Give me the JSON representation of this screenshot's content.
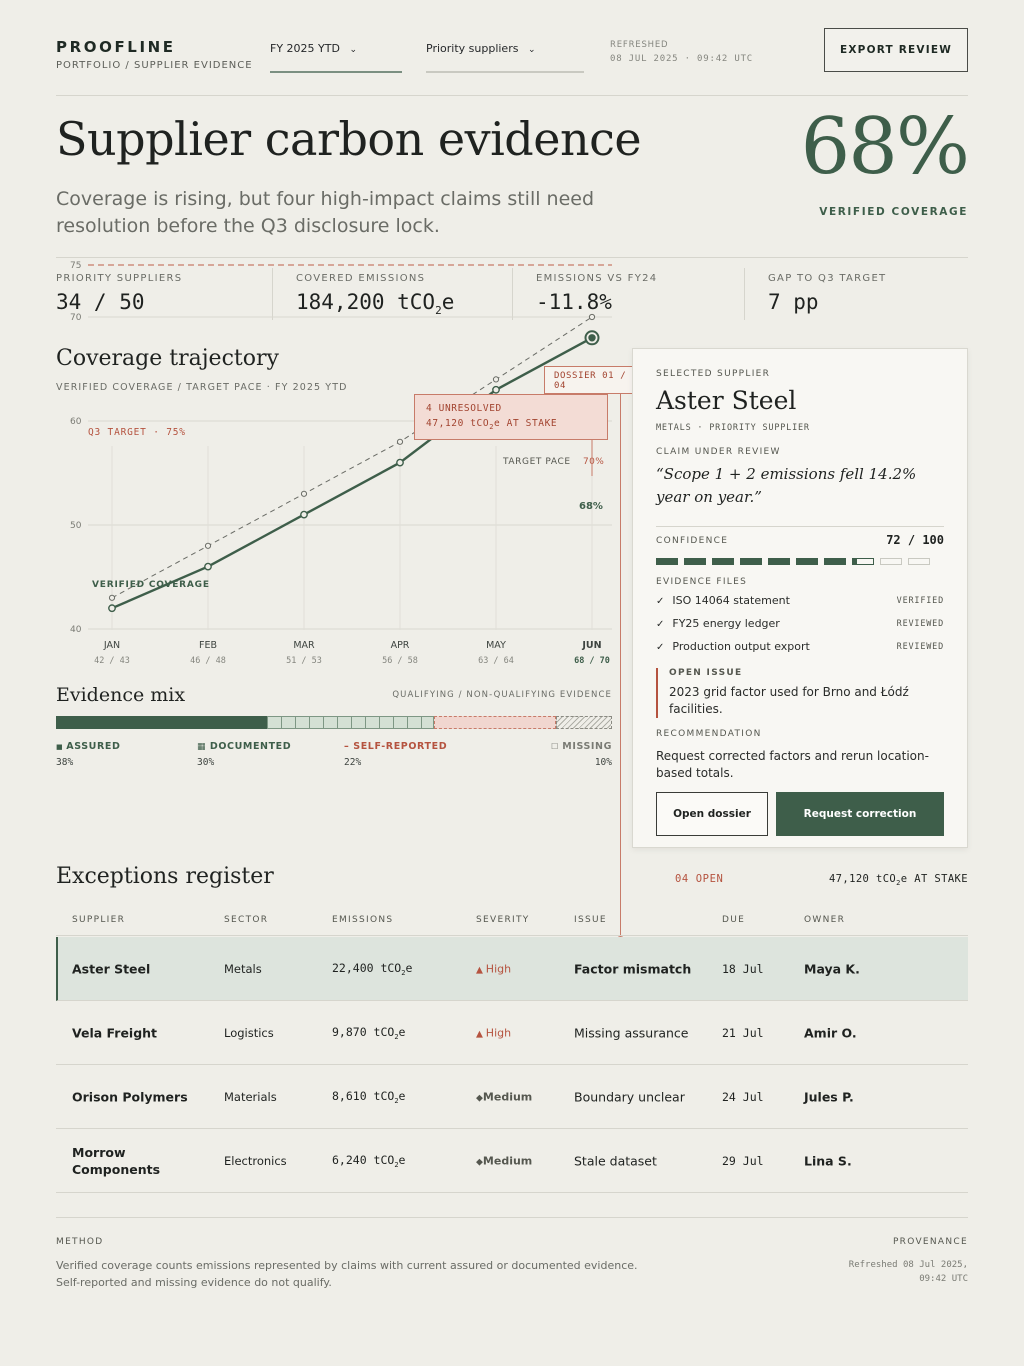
{
  "header": {
    "brand": "PROOFLINE",
    "breadcrumb": "PORTFOLIO / SUPPLIER EVIDENCE",
    "period_select": "FY 2025 YTD",
    "supplier_select": "Priority suppliers",
    "refreshed_label": "REFRESHED",
    "refreshed_value": "08 JUL 2025 · 09:42 UTC",
    "export_label": "EXPORT REVIEW"
  },
  "hero": {
    "title": "Supplier carbon evidence",
    "lede": "Coverage is rising, but four high-impact claims still need resolution before the Q3 disclosure lock.",
    "coverage_value": "68%",
    "coverage_label": "VERIFIED COVERAGE"
  },
  "kpis": [
    {
      "label": "PRIORITY SUPPLIERS",
      "value": "34 / 50"
    },
    {
      "label": "COVERED EMISSIONS",
      "value": "184,200 tCO",
      "sub": "2",
      "tail": "e"
    },
    {
      "label": "EMISSIONS VS FY24",
      "value": "-11.8%"
    },
    {
      "label": "GAP TO Q3 TARGET",
      "value": "7 pp"
    }
  ],
  "trajectory": {
    "title": "Coverage trajectory",
    "subtitle": "VERIFIED COVERAGE / TARGET PACE · FY 2025 YTD",
    "target_label": "Q3 TARGET · 75%",
    "pace_label": "TARGET PACE",
    "pace_end_label": "70%",
    "series_label": "VERIFIED COVERAGE",
    "end_label": "68%",
    "callout_line1": "4 UNRESOLVED",
    "callout_line2a": "47,120 tCO",
    "callout_line2b": "e AT STAKE",
    "dossier_tag": "DOSSIER 01 / 04"
  },
  "chart_data": {
    "type": "line",
    "categories": [
      "JAN",
      "FEB",
      "MAR",
      "APR",
      "MAY",
      "JUN"
    ],
    "pair_labels": [
      "42 / 43",
      "46 / 48",
      "51 / 53",
      "56 / 58",
      "63 / 64",
      "68 / 70"
    ],
    "series": [
      {
        "name": "VERIFIED COVERAGE",
        "values": [
          42,
          46,
          51,
          56,
          63,
          68
        ],
        "color": "#3e5e4a"
      },
      {
        "name": "TARGET PACE",
        "values": [
          43,
          48,
          53,
          58,
          64,
          70
        ],
        "color": "#7a7b74"
      }
    ],
    "target": 75,
    "yticks": [
      40,
      50,
      60,
      70,
      75
    ],
    "ylim": [
      40,
      75
    ]
  },
  "evidence_mix": {
    "title": "Evidence mix",
    "legend": "QUALIFYING / NON-QUALIFYING EVIDENCE",
    "items": [
      {
        "label": "ASSURED",
        "value": "38%",
        "share": 38
      },
      {
        "label": "DOCUMENTED",
        "value": "30%",
        "share": 30
      },
      {
        "label": "SELF-REPORTED",
        "value": "22%",
        "share": 22
      },
      {
        "label": "MISSING",
        "value": "10%",
        "share": 10
      }
    ]
  },
  "card": {
    "eyebrow": "SELECTED SUPPLIER",
    "name": "Aster Steel",
    "meta": "METALS · PRIORITY SUPPLIER",
    "claim_label": "CLAIM UNDER REVIEW",
    "claim": "“Scope 1 + 2 emissions fell 14.2% year on year.”",
    "confidence_label": "CONFIDENCE",
    "confidence_value": "72 / 100",
    "confidence_score": 72,
    "files_label": "EVIDENCE FILES",
    "files": [
      {
        "name": "ISO 14064 statement",
        "status": "VERIFIED"
      },
      {
        "name": "FY25 energy ledger",
        "status": "REVIEWED"
      },
      {
        "name": "Production output export",
        "status": "REVIEWED"
      }
    ],
    "issue_label": "OPEN ISSUE",
    "issue": "2023 grid factor used for Brno and Łódź facilities.",
    "rec_label": "RECOMMENDATION",
    "rec": "Request corrected factors and rerun location-based totals.",
    "open_btn": "Open dossier",
    "req_btn": "Request correction"
  },
  "register": {
    "title": "Exceptions register",
    "open_count": "04 OPEN",
    "at_stake_a": "47,120 tCO",
    "at_stake_b": "e AT STAKE",
    "columns": [
      "SUPPLIER",
      "SECTOR",
      "EMISSIONS",
      "SEVERITY",
      "ISSUE",
      "DUE",
      "OWNER"
    ],
    "rows": [
      {
        "supplier": "Aster Steel",
        "sector": "Metals",
        "emissions": "22,400 tCO",
        "severity": "High",
        "issue": "Factor mismatch",
        "due": "18 Jul",
        "owner": "Maya K."
      },
      {
        "supplier": "Vela Freight",
        "sector": "Logistics",
        "emissions": "9,870 tCO",
        "severity": "High",
        "issue": "Missing assurance",
        "due": "21 Jul",
        "owner": "Amir O."
      },
      {
        "supplier": "Orison Polymers",
        "sector": "Materials",
        "emissions": "8,610 tCO",
        "severity": "Medium",
        "issue": "Boundary unclear",
        "due": "24 Jul",
        "owner": "Jules P."
      },
      {
        "supplier": "Morrow Components",
        "sector": "Electronics",
        "emissions": "6,240 tCO",
        "severity": "Medium",
        "issue": "Stale dataset",
        "due": "29 Jul",
        "owner": "Lina S."
      }
    ]
  },
  "footer": {
    "method_label": "METHOD",
    "method_text": "Verified coverage counts emissions represented by claims with current assured or documented evidence. Self-reported and missing evidence do not qualify.",
    "prov_label": "PROVENANCE",
    "prov_line1": "Refreshed 08 Jul 2025,",
    "prov_line2": "09:42 UTC"
  },
  "colors": {
    "accent": "#3e5e4a",
    "alert": "#b5533f",
    "background": "#efeee8"
  }
}
